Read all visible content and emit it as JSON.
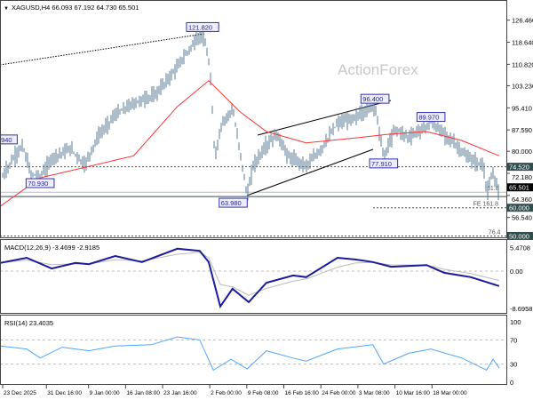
{
  "header": {
    "symbol_info": "XAGUSD,H4  66.093 67.192 64.730 65.501"
  },
  "watermark": "ActionForex",
  "colors": {
    "bars": "#5b7e95",
    "ma": "#ff3333",
    "macd": "#1a1a9c",
    "macd_signal": "#bbbbbb",
    "rsi": "#4da6ff",
    "label_border": "#3333aa",
    "axis_box": "#2f4f4f"
  },
  "chart_data": {
    "type": "line",
    "title": "XAGUSD,H4",
    "price_axis": {
      "ticks": [
        "126.460",
        "118.640",
        "110.820",
        "103.230",
        "95.410",
        "87.590",
        "80.000",
        "72.180",
        "64.360",
        "56.540"
      ],
      "range": [
        50,
        131
      ]
    },
    "time_axis": {
      "ticks": [
        {
          "label": "23 Dec 2025",
          "t": "2025-12-23T00:00"
        },
        {
          "label": "31 Dec 16:00",
          "t": "2025-12-31T16:00"
        },
        {
          "label": "9 Jan 00:00",
          "t": "2026-01-09T00:00"
        },
        {
          "label": "16 Jan 08:00",
          "t": "2026-01-16T08:00"
        },
        {
          "label": "23 Jan 16:00",
          "t": "2026-01-23T16:00"
        },
        {
          "label": "2 Feb 00:00",
          "t": "2026-02-02T00:00"
        },
        {
          "label": "9 Feb 08:00",
          "t": "2026-02-09T08:00"
        },
        {
          "label": "16 Feb 16:00",
          "t": "2026-02-16T16:00"
        },
        {
          "label": "24 Feb 00:00",
          "t": "2026-02-24T00:00"
        },
        {
          "label": "3 Mar 08:00",
          "t": "2026-03-03T08:00"
        },
        {
          "label": "10 Mar 16:00",
          "t": "2026-03-10T16:00"
        },
        {
          "label": "18 Mar 00:00",
          "t": "2026-03-18T00:00"
        }
      ]
    },
    "price_path": [
      [
        "2025-12-23T00:00",
        71
      ],
      [
        "2025-12-24T14:00",
        76
      ],
      [
        "2025-12-26T22:00",
        82
      ],
      [
        "2025-12-28T14:00",
        72
      ],
      [
        "2025-12-30T10:00",
        70.93
      ],
      [
        "2026-01-02T00:00",
        78
      ],
      [
        "2026-01-05T12:00",
        81
      ],
      [
        "2026-01-08T05:00",
        75
      ],
      [
        "2026-01-10T19:00",
        85
      ],
      [
        "2026-01-14T07:00",
        93
      ],
      [
        "2026-01-17T22:00",
        97
      ],
      [
        "2026-01-22T05:00",
        100
      ],
      [
        "2026-01-25T19:00",
        108
      ],
      [
        "2026-01-29T07:00",
        117
      ],
      [
        "2026-01-31T14:00",
        121.82
      ],
      [
        "2026-02-02T00:00",
        110
      ],
      [
        "2026-02-03T00:00",
        78
      ],
      [
        "2026-02-04T10:00",
        90
      ],
      [
        "2026-02-06T12:00",
        95
      ],
      [
        "2026-02-08T00:00",
        80
      ],
      [
        "2026-02-09T10:00",
        63.98
      ],
      [
        "2026-02-10T14:00",
        75
      ],
      [
        "2026-02-13T05:00",
        82
      ],
      [
        "2026-02-15T07:00",
        86
      ],
      [
        "2026-02-17T14:00",
        78
      ],
      [
        "2026-02-21T02:00",
        75
      ],
      [
        "2026-02-23T19:00",
        80
      ],
      [
        "2026-02-27T07:00",
        90
      ],
      [
        "2026-03-02T19:00",
        92
      ],
      [
        "2026-03-06T17:00",
        96.4
      ],
      [
        "2026-03-08T10:00",
        77.91
      ],
      [
        "2026-03-10T17:00",
        88
      ],
      [
        "2026-03-13T10:00",
        85
      ],
      [
        "2026-03-17T19:00",
        89.97
      ],
      [
        "2026-03-21T07:00",
        85
      ],
      [
        "2026-03-24T19:00",
        78
      ],
      [
        "2026-03-28T07:00",
        74.5
      ],
      [
        "2026-03-28T19:00",
        65
      ],
      [
        "2026-03-30T02:00",
        72
      ],
      [
        "2026-03-31T07:00",
        65.501
      ]
    ],
    "moving_average": [
      [
        "2025-12-22T12:00",
        60.5
      ],
      [
        "2025-12-30T10:00",
        70.6
      ],
      [
        "2026-01-17T22:00",
        78.4
      ],
      [
        "2026-01-26T14:00",
        95.8
      ],
      [
        "2026-02-01T19:00",
        105
      ],
      [
        "2026-02-08T00:00",
        94
      ],
      [
        "2026-02-13T05:00",
        87
      ],
      [
        "2026-02-21T02:00",
        83
      ],
      [
        "2026-03-02T19:00",
        84.7
      ],
      [
        "2026-03-09T00:00",
        86
      ],
      [
        "2026-03-16T22:00",
        87
      ],
      [
        "2026-03-23T22:00",
        83.8
      ],
      [
        "2026-03-31T07:00",
        78.4
      ]
    ],
    "swing_labels": [
      {
        "text": ".940",
        "t": "2025-12-26T22:00",
        "price": 82
      },
      {
        "text": "70.930",
        "t": "2025-12-30T10:00",
        "price": 70.93
      },
      {
        "text": "121.820",
        "t": "2026-01-31T14:00",
        "price": 121.82
      },
      {
        "text": "63.980",
        "t": "2026-02-09T10:00",
        "price": 63.98
      },
      {
        "text": "96.400",
        "t": "2026-03-06T17:00",
        "price": 96.4
      },
      {
        "text": "77.910",
        "t": "2026-03-08T10:00",
        "price": 77.91
      },
      {
        "text": "89.970",
        "t": "2026-03-17T19:00",
        "price": 89.97
      }
    ],
    "levels": [
      {
        "price": 74.52,
        "label": "74.520",
        "style": "dashed"
      },
      {
        "price": 65.501,
        "label": "65.501",
        "style": "current"
      },
      {
        "price": 60.0,
        "label": "60.000",
        "style": "dashed",
        "note": "FE 161.8"
      },
      {
        "price": 50.0,
        "label": "50.000",
        "style": "dashed",
        "note": "76.4"
      }
    ],
    "fib_note_618": "61.8",
    "macd": {
      "title": "MACD(12,26,9) -3.4699 -2.9185",
      "ticks": [
        "5.4708",
        "0.00",
        "-8.6958"
      ],
      "range": [
        -8.6958,
        5.4708
      ],
      "main": [
        [
          "2025-12-22T12:00",
          1.9
        ],
        [
          "2025-12-27T18:00",
          3.1
        ],
        [
          "2026-01-01T17:00",
          0.6
        ],
        [
          "2026-01-06T10:00",
          1.9
        ],
        [
          "2026-01-09T02:00",
          1.6
        ],
        [
          "2026-01-14T07:00",
          3.5
        ],
        [
          "2026-01-19T14:00",
          2.1
        ],
        [
          "2026-01-26T14:00",
          5.2
        ],
        [
          "2026-01-31T00:00",
          4.7
        ],
        [
          "2026-02-01T19:00",
          2.1
        ],
        [
          "2026-02-04T02:00",
          -8.2
        ],
        [
          "2026-02-06T12:00",
          -4.1
        ],
        [
          "2026-02-09T17:00",
          -7.2
        ],
        [
          "2026-02-13T05:00",
          -2.7
        ],
        [
          "2026-02-18T12:00",
          -1.0
        ],
        [
          "2026-02-21T02:00",
          -1.4
        ],
        [
          "2026-02-27T07:00",
          3.1
        ],
        [
          "2026-03-02T19:00",
          2.7
        ],
        [
          "2026-03-06T07:00",
          2.1
        ],
        [
          "2026-03-09T22:00",
          1.0
        ],
        [
          "2026-03-16T22:00",
          1.4
        ],
        [
          "2026-03-20T10:00",
          -0.4
        ],
        [
          "2026-03-25T17:00",
          -1.4
        ],
        [
          "2026-03-31T07:00",
          -3.4699
        ]
      ]
    },
    "rsi": {
      "title": "RSI(14) 23.4035",
      "ticks": [
        "100",
        "70",
        "30",
        "0"
      ],
      "range": [
        0,
        100
      ],
      "values": [
        [
          "2025-12-22T12:00",
          60
        ],
        [
          "2025-12-27T18:00",
          55
        ],
        [
          "2025-12-30T10:00",
          40
        ],
        [
          "2026-01-03T19:00",
          58
        ],
        [
          "2026-01-09T02:00",
          52
        ],
        [
          "2026-01-14T07:00",
          60
        ],
        [
          "2026-01-21T10:00",
          62
        ],
        [
          "2026-01-26T14:00",
          75
        ],
        [
          "2026-01-31T00:00",
          70
        ],
        [
          "2026-02-02T17:00",
          20
        ],
        [
          "2026-02-06T05:00",
          38
        ],
        [
          "2026-02-09T10:00",
          22
        ],
        [
          "2026-02-13T05:00",
          52
        ],
        [
          "2026-02-18T12:00",
          40
        ],
        [
          "2026-02-21T02:00",
          35
        ],
        [
          "2026-02-27T07:00",
          55
        ],
        [
          "2026-03-06T07:00",
          62
        ],
        [
          "2026-03-08T10:00",
          30
        ],
        [
          "2026-03-13T10:00",
          48
        ],
        [
          "2026-03-17T19:00",
          55
        ],
        [
          "2026-03-23T22:00",
          40
        ],
        [
          "2026-03-28T19:00",
          20
        ],
        [
          "2026-03-30T02:00",
          38
        ],
        [
          "2026-03-31T07:00",
          23.4035
        ]
      ]
    }
  }
}
